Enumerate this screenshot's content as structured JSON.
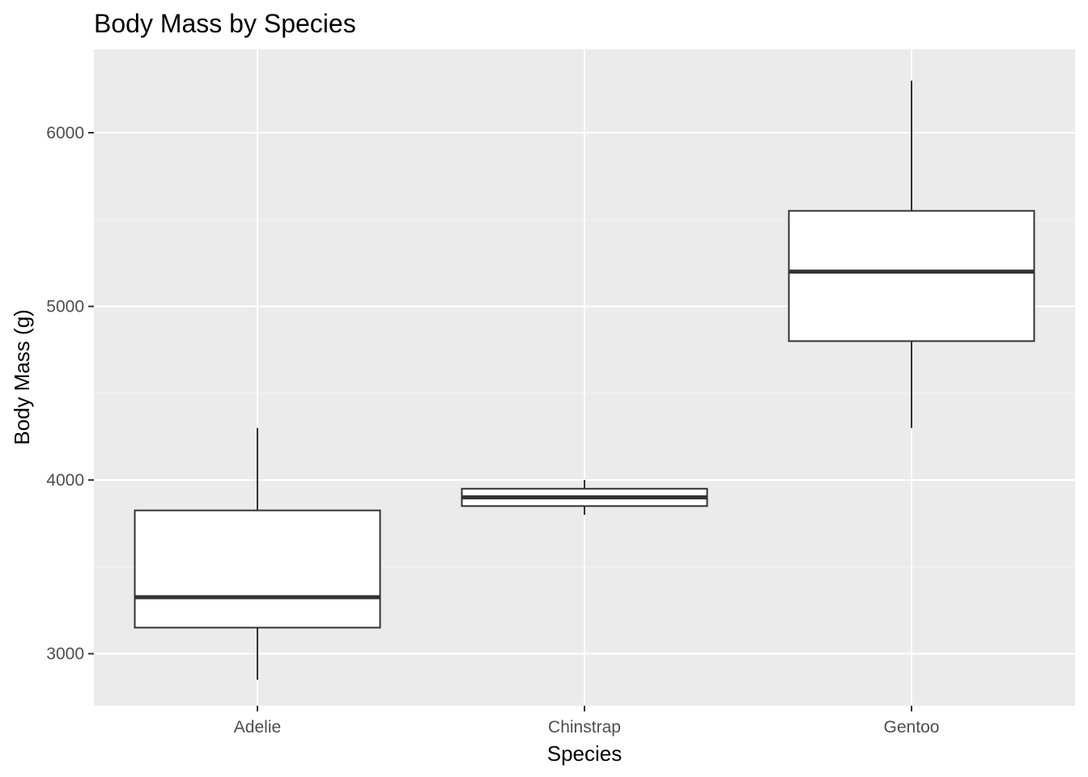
{
  "chart_data": {
    "type": "boxplot",
    "title": "Body Mass by Species",
    "xlabel": "Species",
    "ylabel": "Body Mass (g)",
    "categories": [
      "Adelie",
      "Chinstrap",
      "Gentoo"
    ],
    "boxes": [
      {
        "category": "Adelie",
        "min": 2850,
        "q1": 3150,
        "median": 3325,
        "q3": 3825,
        "max": 4300
      },
      {
        "category": "Chinstrap",
        "min": 3800,
        "q1": 3850,
        "median": 3900,
        "q3": 3950,
        "max": 4000
      },
      {
        "category": "Gentoo",
        "min": 4300,
        "q1": 4800,
        "median": 5200,
        "q3": 5550,
        "max": 6300
      }
    ],
    "ylim": [
      2700,
      6480
    ],
    "yticks": [
      3000,
      4000,
      5000,
      6000
    ],
    "ytick_labels": [
      "3000",
      "4000",
      "5000",
      "6000"
    ],
    "grid": true,
    "colors": {
      "panel_background": "#ebebeb",
      "grid_major": "#ffffff",
      "grid_minor": "#f5f5f5",
      "box_fill": "#ffffff",
      "box_stroke": "#333333",
      "tick_mark": "#333333"
    }
  }
}
